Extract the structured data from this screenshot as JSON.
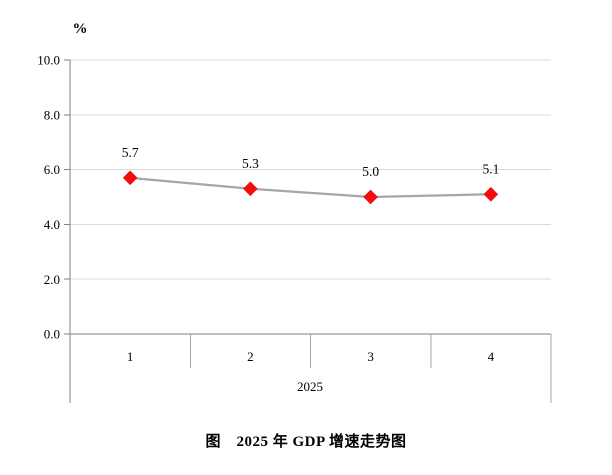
{
  "chart_data": {
    "type": "line",
    "title": "图　2025 年 GDP 增速走势图",
    "ylabel": "%",
    "categories": [
      "1",
      "2",
      "3",
      "4"
    ],
    "group_label": "2025",
    "values": [
      5.7,
      5.3,
      5.0,
      5.1
    ],
    "data_labels": [
      "5.7",
      "5.3",
      "5.0",
      "5.1"
    ],
    "ylim": [
      0,
      10
    ],
    "yticks": [
      0,
      2,
      4,
      6,
      8,
      10
    ],
    "ytick_labels": [
      "0.0",
      "2.0",
      "4.0",
      "6.0",
      "8.0",
      "10.0"
    ],
    "grid": true,
    "legend": "none",
    "colors": {
      "marker": "#f50d0d",
      "line": "#a6a6a6",
      "gridline": "#d9d9d9",
      "axis": "#7f7f7f",
      "separator": "#a6a6a6",
      "text": "#000000"
    }
  }
}
